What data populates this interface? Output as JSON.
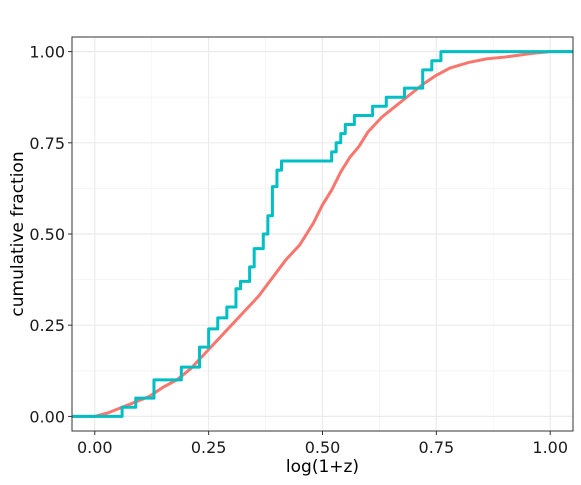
{
  "chart_data": {
    "type": "line",
    "step": true,
    "xlabel": "log(1+z)",
    "ylabel": "cumulative fraction",
    "xlim": [
      -0.05,
      1.05
    ],
    "ylim": [
      -0.04,
      1.04
    ],
    "x_ticks": [
      0.0,
      0.25,
      0.5,
      0.75,
      1.0
    ],
    "x_tick_labels": [
      "0.00",
      "0.25",
      "0.50",
      "0.75",
      "1.00"
    ],
    "y_ticks": [
      0.0,
      0.25,
      0.5,
      0.75,
      1.0
    ],
    "y_tick_labels": [
      "0.00",
      "0.25",
      "0.50",
      "0.75",
      "1.00"
    ],
    "grid": true,
    "legend": "none",
    "series": [
      {
        "color": "#F8766D",
        "points": [
          [
            -0.05,
            0.0
          ],
          [
            0.0,
            0.0
          ],
          [
            0.03,
            0.01
          ],
          [
            0.06,
            0.025
          ],
          [
            0.09,
            0.04
          ],
          [
            0.12,
            0.055
          ],
          [
            0.15,
            0.08
          ],
          [
            0.18,
            0.1
          ],
          [
            0.21,
            0.13
          ],
          [
            0.24,
            0.17
          ],
          [
            0.27,
            0.21
          ],
          [
            0.3,
            0.25
          ],
          [
            0.33,
            0.29
          ],
          [
            0.36,
            0.33
          ],
          [
            0.39,
            0.38
          ],
          [
            0.42,
            0.43
          ],
          [
            0.45,
            0.47
          ],
          [
            0.48,
            0.53
          ],
          [
            0.5,
            0.58
          ],
          [
            0.52,
            0.62
          ],
          [
            0.54,
            0.67
          ],
          [
            0.56,
            0.71
          ],
          [
            0.58,
            0.74
          ],
          [
            0.6,
            0.78
          ],
          [
            0.63,
            0.82
          ],
          [
            0.66,
            0.85
          ],
          [
            0.69,
            0.88
          ],
          [
            0.72,
            0.91
          ],
          [
            0.75,
            0.935
          ],
          [
            0.78,
            0.955
          ],
          [
            0.82,
            0.97
          ],
          [
            0.86,
            0.98
          ],
          [
            0.9,
            0.985
          ],
          [
            0.93,
            0.99
          ],
          [
            0.96,
            0.995
          ],
          [
            1.0,
            1.0
          ],
          [
            1.05,
            1.0
          ]
        ]
      },
      {
        "color": "#00BFC4",
        "points": [
          [
            -0.05,
            0.0
          ],
          [
            0.06,
            0.0
          ],
          [
            0.06,
            0.025
          ],
          [
            0.09,
            0.025
          ],
          [
            0.09,
            0.05
          ],
          [
            0.13,
            0.05
          ],
          [
            0.13,
            0.1
          ],
          [
            0.19,
            0.1
          ],
          [
            0.19,
            0.135
          ],
          [
            0.23,
            0.135
          ],
          [
            0.23,
            0.19
          ],
          [
            0.25,
            0.19
          ],
          [
            0.25,
            0.24
          ],
          [
            0.27,
            0.24
          ],
          [
            0.27,
            0.27
          ],
          [
            0.29,
            0.27
          ],
          [
            0.29,
            0.3
          ],
          [
            0.31,
            0.3
          ],
          [
            0.31,
            0.35
          ],
          [
            0.32,
            0.35
          ],
          [
            0.32,
            0.37
          ],
          [
            0.34,
            0.37
          ],
          [
            0.34,
            0.41
          ],
          [
            0.35,
            0.41
          ],
          [
            0.35,
            0.46
          ],
          [
            0.37,
            0.46
          ],
          [
            0.37,
            0.5
          ],
          [
            0.38,
            0.5
          ],
          [
            0.38,
            0.55
          ],
          [
            0.39,
            0.55
          ],
          [
            0.39,
            0.63
          ],
          [
            0.4,
            0.63
          ],
          [
            0.4,
            0.675
          ],
          [
            0.41,
            0.675
          ],
          [
            0.41,
            0.7
          ],
          [
            0.52,
            0.7
          ],
          [
            0.52,
            0.725
          ],
          [
            0.53,
            0.725
          ],
          [
            0.53,
            0.75
          ],
          [
            0.54,
            0.75
          ],
          [
            0.54,
            0.775
          ],
          [
            0.55,
            0.775
          ],
          [
            0.55,
            0.8
          ],
          [
            0.57,
            0.8
          ],
          [
            0.57,
            0.825
          ],
          [
            0.61,
            0.825
          ],
          [
            0.61,
            0.85
          ],
          [
            0.64,
            0.85
          ],
          [
            0.64,
            0.875
          ],
          [
            0.68,
            0.875
          ],
          [
            0.68,
            0.9
          ],
          [
            0.72,
            0.9
          ],
          [
            0.72,
            0.95
          ],
          [
            0.74,
            0.95
          ],
          [
            0.74,
            0.975
          ],
          [
            0.76,
            0.975
          ],
          [
            0.76,
            1.0
          ],
          [
            1.05,
            1.0
          ]
        ]
      }
    ]
  }
}
